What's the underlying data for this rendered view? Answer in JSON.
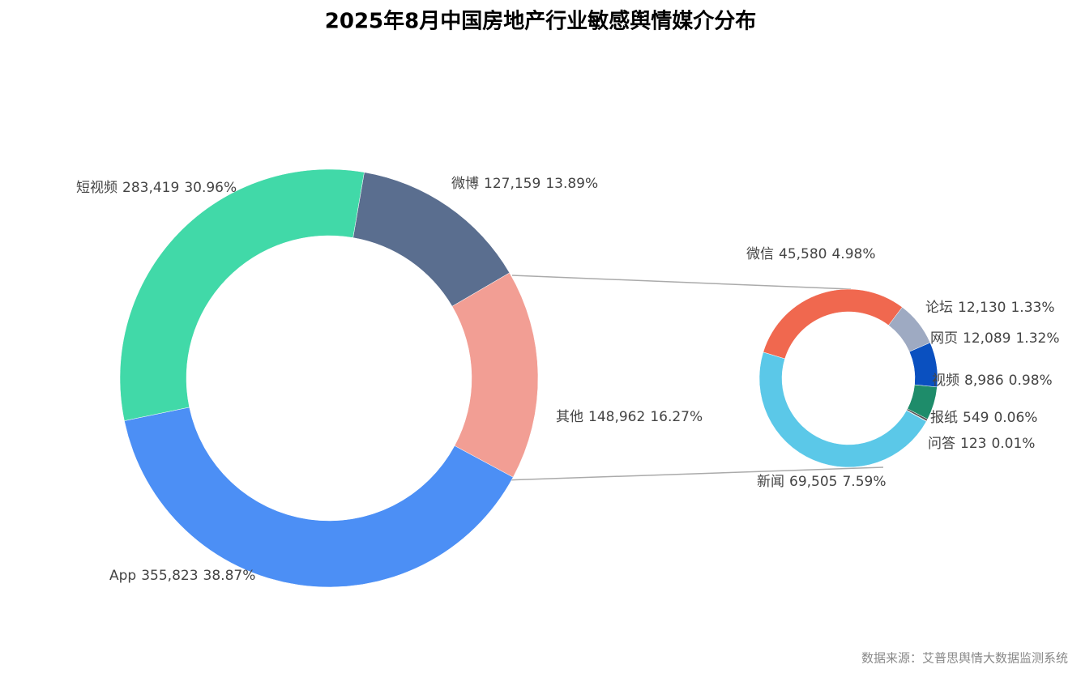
{
  "title": "2025年8月中国房地产行业敏感舆情媒介分布",
  "source": "数据来源：艾普思舆情大数据监测系统",
  "chart_data": [
    {
      "type": "donut",
      "categories": [
        "微博",
        "其他",
        "App",
        "短视频"
      ],
      "values": [
        127159,
        148962,
        355823,
        283419
      ],
      "value_labels": [
        "127,159",
        "148,962",
        "355,823",
        "283,419"
      ],
      "percent_labels": [
        "13.89%",
        "16.27%",
        "38.87%",
        "30.96%"
      ],
      "colors": [
        "#5a6e8f",
        "#f29e94",
        "#4c8ff5",
        "#41d9a8"
      ]
    },
    {
      "type": "donut",
      "categories": [
        "微信",
        "论坛",
        "网页",
        "视频",
        "报纸",
        "问答",
        "新闻"
      ],
      "values": [
        45580,
        12130,
        12089,
        8986,
        549,
        123,
        69505
      ],
      "value_labels": [
        "45,580",
        "12,130",
        "12,089",
        "8,986",
        "549",
        "123",
        "69,505"
      ],
      "percent_labels": [
        "4.98%",
        "1.33%",
        "1.32%",
        "0.98%",
        "0.06%",
        "0.01%",
        "7.59%"
      ],
      "colors": [
        "#f0684f",
        "#9eaac2",
        "#0a50c0",
        "#1e8c6a",
        "#555555",
        "#888888",
        "#5bc8e8"
      ]
    }
  ]
}
